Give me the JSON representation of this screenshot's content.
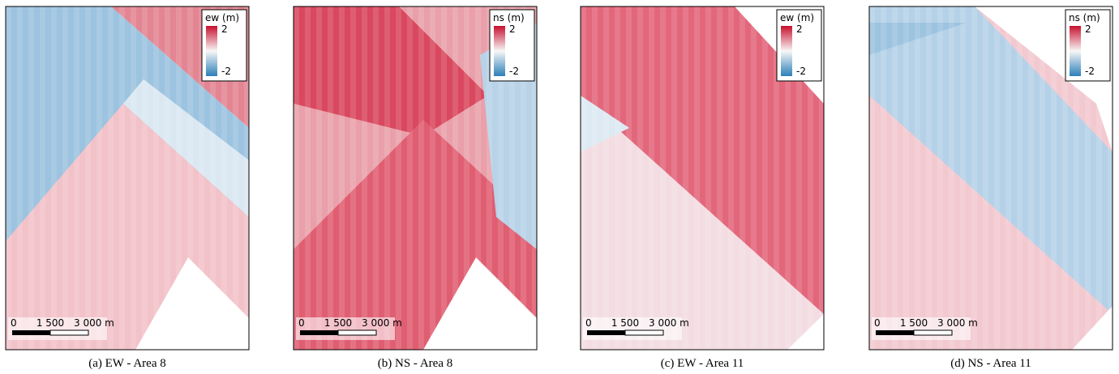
{
  "panels": [
    {
      "caption": "(a) EW - Area 8",
      "legend": {
        "title": "ew (m)",
        "max": "2",
        "min": "-2"
      },
      "scale": [
        "0",
        "1 500",
        "3 000 m"
      ]
    },
    {
      "caption": "(b) NS - Area 8",
      "legend": {
        "title": "ns (m)",
        "max": "2",
        "min": "-2"
      },
      "scale": [
        "0",
        "1 500",
        "3 000 m"
      ]
    },
    {
      "caption": "(c) EW - Area 11",
      "legend": {
        "title": "ew (m)",
        "max": "2",
        "min": "-2"
      },
      "scale": [
        "0",
        "1 500",
        "3 000 m"
      ]
    },
    {
      "caption": "(d) NS - Area 11",
      "legend": {
        "title": "ns (m)",
        "max": "2",
        "min": "-2"
      },
      "scale": [
        "0",
        "1 500",
        "3 000 m"
      ]
    }
  ]
}
